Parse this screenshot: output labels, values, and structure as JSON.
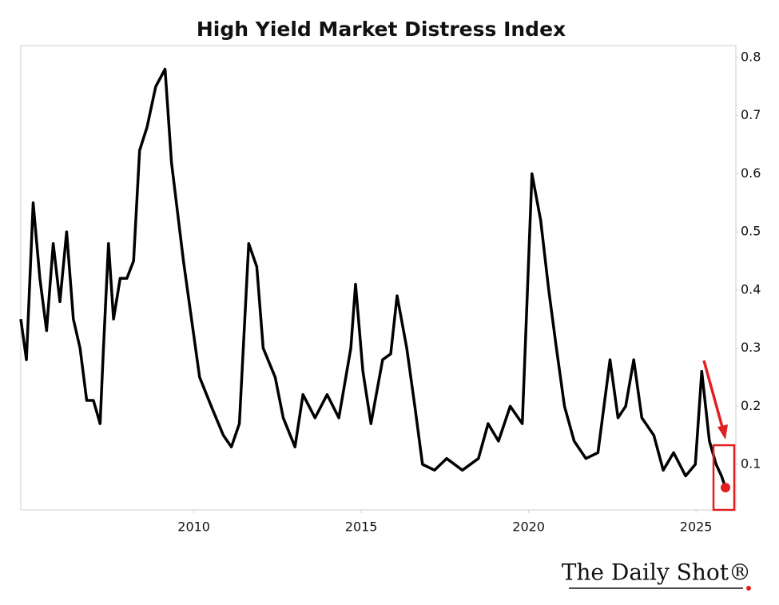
{
  "chart_data": {
    "type": "line",
    "title": "High Yield Market Distress Index",
    "x": [
      2004.83,
      2005.0,
      2005.2,
      2005.4,
      2005.6,
      2005.8,
      2006.0,
      2006.2,
      2006.4,
      2006.6,
      2006.8,
      2007.0,
      2007.2,
      2007.3,
      2007.45,
      2007.6,
      2007.8,
      2008.0,
      2008.2,
      2008.38,
      2008.6,
      2008.86,
      2009.14,
      2009.33,
      2009.69,
      2009.93,
      2010.17,
      2010.52,
      2010.88,
      2011.12,
      2011.36,
      2011.64,
      2011.88,
      2012.07,
      2012.43,
      2012.67,
      2013.02,
      2013.26,
      2013.62,
      2013.98,
      2014.33,
      2014.69,
      2014.83,
      2015.05,
      2015.29,
      2015.64,
      2015.88,
      2016.07,
      2016.36,
      2016.6,
      2016.83,
      2017.19,
      2017.55,
      2018.02,
      2018.5,
      2018.79,
      2019.1,
      2019.45,
      2019.81,
      2020.1,
      2020.36,
      2020.6,
      2020.83,
      2021.07,
      2021.36,
      2021.71,
      2022.07,
      2022.43,
      2022.67,
      2022.9,
      2023.14,
      2023.38,
      2023.74,
      2024.02,
      2024.33,
      2024.69,
      2024.98,
      2025.17,
      2025.4,
      2025.6,
      2025.76,
      2025.88
    ],
    "series": [
      {
        "name": "High Yield Market Distress Index",
        "color": "#000000",
        "values": [
          0.35,
          0.28,
          0.55,
          0.42,
          0.33,
          0.48,
          0.38,
          0.5,
          0.35,
          0.3,
          0.21,
          0.21,
          0.17,
          0.3,
          0.48,
          0.35,
          0.42,
          0.42,
          0.45,
          0.64,
          0.68,
          0.75,
          0.78,
          0.62,
          0.45,
          0.35,
          0.25,
          0.2,
          0.15,
          0.13,
          0.17,
          0.48,
          0.44,
          0.3,
          0.25,
          0.18,
          0.13,
          0.22,
          0.18,
          0.22,
          0.18,
          0.3,
          0.41,
          0.26,
          0.17,
          0.28,
          0.29,
          0.39,
          0.3,
          0.2,
          0.1,
          0.09,
          0.11,
          0.09,
          0.11,
          0.17,
          0.14,
          0.2,
          0.17,
          0.6,
          0.52,
          0.4,
          0.3,
          0.2,
          0.14,
          0.11,
          0.12,
          0.28,
          0.18,
          0.2,
          0.28,
          0.18,
          0.15,
          0.09,
          0.12,
          0.08,
          0.1,
          0.26,
          0.14,
          0.1,
          0.08,
          0.06
        ]
      }
    ],
    "xlim": [
      2004.83,
      2026.19
    ],
    "xticks": [
      2010,
      2015,
      2020,
      2025
    ],
    "ylim": [
      0.0216,
      0.8206
    ],
    "yticks": [
      0.1,
      0.2,
      0.3,
      0.4,
      0.5,
      0.6,
      0.7,
      0.8
    ],
    "grid": false,
    "highlight_color": "#e02020",
    "brand": "The Daily Shot®"
  }
}
